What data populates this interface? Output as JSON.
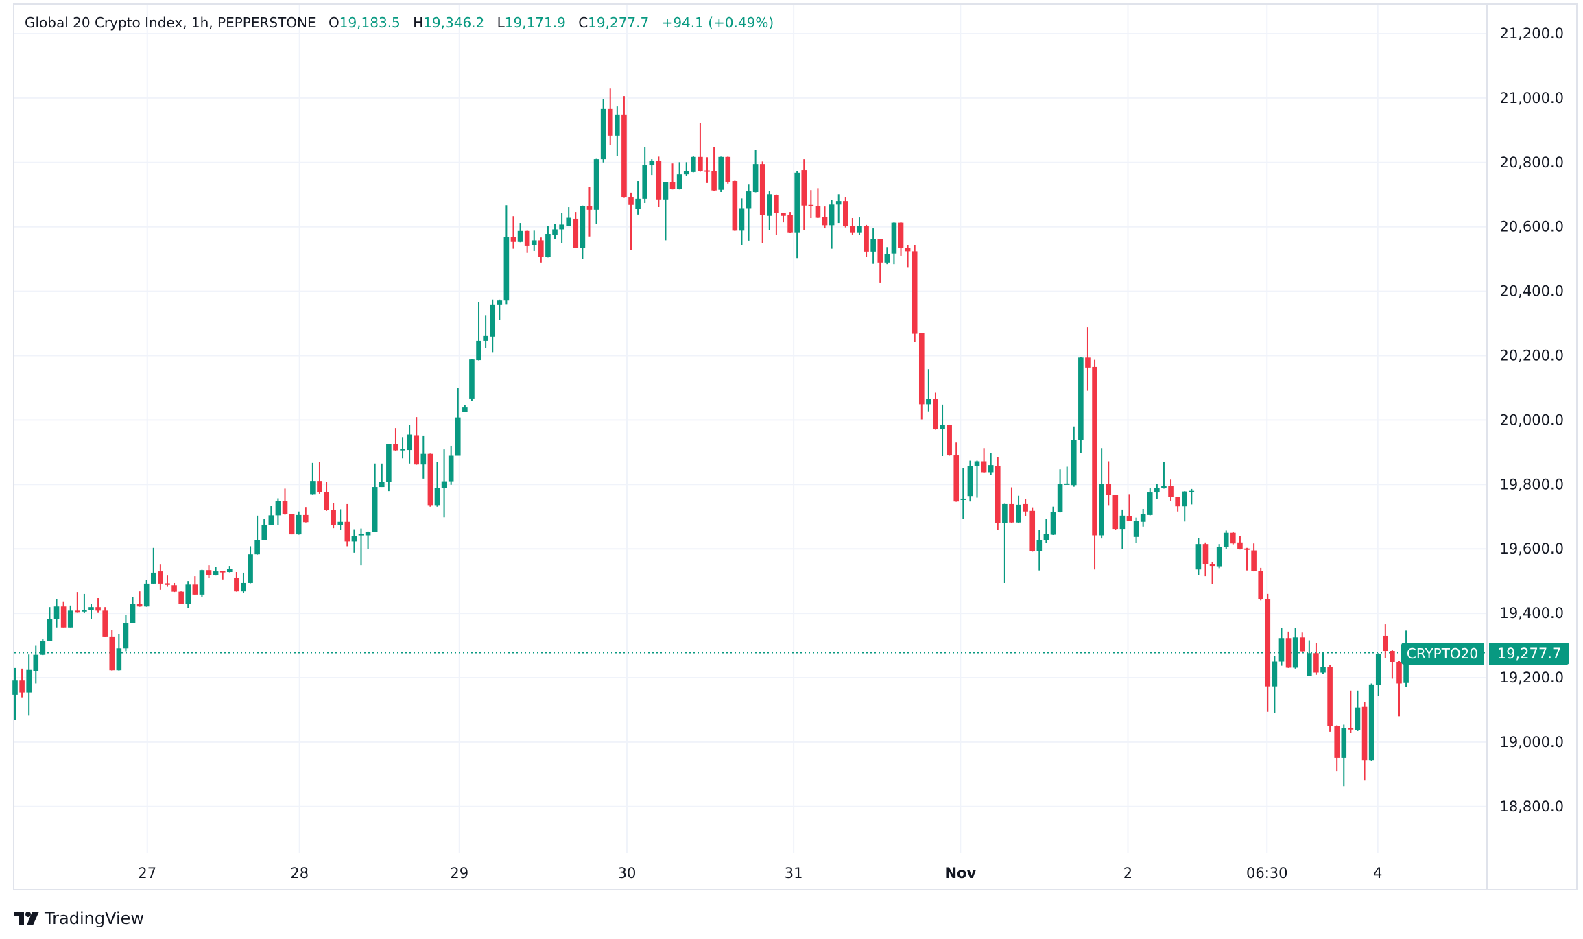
{
  "header": {
    "title": "Global 20 Crypto Index, 1h, PEPPERSTONE",
    "o_label": "O",
    "o_value": "19,183.5",
    "h_label": "H",
    "h_value": "19,346.2",
    "l_label": "L",
    "l_value": "19,171.9",
    "c_label": "C",
    "c_value": "19,277.7",
    "change": "+94.1 (+0.49%)"
  },
  "last_price": {
    "symbol": "CRYPTO20",
    "value": "19,277.7",
    "price": 19277.7
  },
  "branding": {
    "logo_text": "TradingView"
  },
  "colors": {
    "up": "#089981",
    "down": "#f23645",
    "grid": "#f0f3fa",
    "text": "#131722"
  },
  "chart_data": {
    "type": "candlestick",
    "title": "Global 20 Crypto Index, 1h, PEPPERSTONE",
    "ylim": [
      18650,
      21300
    ],
    "y_ticks": [
      {
        "value": 21200,
        "label": "21,200.0"
      },
      {
        "value": 21000,
        "label": "21,000.0"
      },
      {
        "value": 20800,
        "label": "20,800.0"
      },
      {
        "value": 20600,
        "label": "20,600.0"
      },
      {
        "value": 20400,
        "label": "20,400.0"
      },
      {
        "value": 20200,
        "label": "20,200.0"
      },
      {
        "value": 20000,
        "label": "20,000.0"
      },
      {
        "value": 19800,
        "label": "19,800.0"
      },
      {
        "value": 19600,
        "label": "19,600.0"
      },
      {
        "value": 19400,
        "label": "19,400.0"
      },
      {
        "value": 19200,
        "label": "19,200.0"
      },
      {
        "value": 19000,
        "label": "19,000.0"
      },
      {
        "value": 18800,
        "label": "18,800.0"
      }
    ],
    "x_ticks": [
      {
        "index": 19.1,
        "label": "27",
        "bold": false
      },
      {
        "index": 41.1,
        "label": "28",
        "bold": false
      },
      {
        "index": 64.2,
        "label": "29",
        "bold": false
      },
      {
        "index": 88.4,
        "label": "30",
        "bold": false
      },
      {
        "index": 112.5,
        "label": "31",
        "bold": false
      },
      {
        "index": 136.6,
        "label": "Nov",
        "bold": true
      },
      {
        "index": 160.8,
        "label": "2",
        "bold": false
      },
      {
        "index": 180.9,
        "label": "06:30",
        "bold": false
      },
      {
        "index": 196.9,
        "label": "4",
        "bold": false
      }
    ],
    "candles_format": [
      "open",
      "high",
      "low",
      "close"
    ],
    "candles": [
      [
        19147,
        19230,
        19068,
        19191
      ],
      [
        19191,
        19228,
        19139,
        19154
      ],
      [
        19154,
        19272,
        19082,
        19224
      ],
      [
        19220,
        19299,
        19182,
        19271
      ],
      [
        19271,
        19320,
        19270,
        19314
      ],
      [
        19314,
        19419,
        19313,
        19383
      ],
      [
        19383,
        19443,
        19356,
        19421
      ],
      [
        19421,
        19437,
        19356,
        19356
      ],
      [
        19356,
        19424,
        19358,
        19408
      ],
      [
        19408,
        19466,
        19403,
        19405
      ],
      [
        19405,
        19460,
        19402,
        19410
      ],
      [
        19410,
        19430,
        19382,
        19419
      ],
      [
        19419,
        19447,
        19403,
        19408
      ],
      [
        19408,
        19419,
        19327,
        19328
      ],
      [
        19328,
        19347,
        19222,
        19223
      ],
      [
        19223,
        19336,
        19222,
        19291
      ],
      [
        19291,
        19395,
        19282,
        19370
      ],
      [
        19370,
        19451,
        19369,
        19429
      ],
      [
        19429,
        19468,
        19420,
        19421
      ],
      [
        19421,
        19503,
        19420,
        19492
      ],
      [
        19492,
        19603,
        19490,
        19526
      ],
      [
        19530,
        19551,
        19473,
        19492
      ],
      [
        19493,
        19517,
        19482,
        19488
      ],
      [
        19487,
        19494,
        19466,
        19467
      ],
      [
        19467,
        19468,
        19430,
        19430
      ],
      [
        19430,
        19500,
        19416,
        19489
      ],
      [
        19489,
        19515,
        19457,
        19458
      ],
      [
        19458,
        19535,
        19451,
        19534
      ],
      [
        19534,
        19549,
        19510,
        19518
      ],
      [
        19518,
        19545,
        19517,
        19530
      ],
      [
        19531,
        19532,
        19505,
        19530
      ],
      [
        19528,
        19547,
        19527,
        19537
      ],
      [
        19510,
        19528,
        19467,
        19468
      ],
      [
        19468,
        19526,
        19464,
        19494
      ],
      [
        19494,
        19608,
        19493,
        19583
      ],
      [
        19583,
        19703,
        19582,
        19628
      ],
      [
        19628,
        19693,
        19627,
        19675
      ],
      [
        19675,
        19733,
        19674,
        19704
      ],
      [
        19704,
        19757,
        19675,
        19748
      ],
      [
        19748,
        19787,
        19706,
        19707
      ],
      [
        19707,
        19708,
        19645,
        19645
      ],
      [
        19645,
        19716,
        19644,
        19705
      ],
      [
        19705,
        19730,
        19682,
        19683
      ],
      [
        19770,
        19867,
        19769,
        19811
      ],
      [
        19811,
        19869,
        19771,
        19777
      ],
      [
        19777,
        19809,
        19718,
        19721
      ],
      [
        19721,
        19741,
        19664,
        19675
      ],
      [
        19675,
        19723,
        19660,
        19684
      ],
      [
        19684,
        19739,
        19608,
        19623
      ],
      [
        19623,
        19661,
        19588,
        19639
      ],
      [
        19645,
        19663,
        19549,
        19646
      ],
      [
        19642,
        19654,
        19600,
        19653
      ],
      [
        19653,
        19865,
        19652,
        19792
      ],
      [
        19792,
        19865,
        19792,
        19808
      ],
      [
        19808,
        19926,
        19779,
        19925
      ],
      [
        19925,
        19975,
        19905,
        19906
      ],
      [
        19907,
        19947,
        19881,
        19910
      ],
      [
        19907,
        19984,
        19865,
        19955
      ],
      [
        19953,
        20009,
        19861,
        19862
      ],
      [
        19862,
        19952,
        19818,
        19895
      ],
      [
        19895,
        19896,
        19731,
        19736
      ],
      [
        19736,
        19870,
        19731,
        19788
      ],
      [
        19788,
        19909,
        19698,
        19810
      ],
      [
        19810,
        19920,
        19799,
        19889
      ],
      [
        19889,
        20099,
        19892,
        20008
      ],
      [
        20026,
        20047,
        20025,
        20039
      ],
      [
        20067,
        20189,
        20059,
        20188
      ],
      [
        20186,
        20365,
        20185,
        20246
      ],
      [
        20246,
        20326,
        20223,
        20261
      ],
      [
        20259,
        20374,
        20211,
        20359
      ],
      [
        20359,
        20374,
        20310,
        20371
      ],
      [
        20371,
        20667,
        20360,
        20569
      ],
      [
        20569,
        20633,
        20532,
        20553
      ],
      [
        20553,
        20612,
        20552,
        20587
      ],
      [
        20587,
        20588,
        20519,
        20542
      ],
      [
        20544,
        20588,
        20525,
        20558
      ],
      [
        20558,
        20567,
        20489,
        20506
      ],
      [
        20506,
        20603,
        20505,
        20578
      ],
      [
        20576,
        20610,
        20563,
        20592
      ],
      [
        20592,
        20644,
        20550,
        20607
      ],
      [
        20603,
        20661,
        20602,
        20628
      ],
      [
        20625,
        20646,
        20534,
        20535
      ],
      [
        20535,
        20666,
        20500,
        20665
      ],
      [
        20665,
        20723,
        20570,
        20653
      ],
      [
        20653,
        20811,
        20610,
        20810
      ],
      [
        20810,
        20997,
        20800,
        20966
      ],
      [
        20966,
        21029,
        20853,
        20883
      ],
      [
        20883,
        20974,
        20819,
        20949
      ],
      [
        20949,
        21006,
        20692,
        20693
      ],
      [
        20693,
        20706,
        20527,
        20668
      ],
      [
        20656,
        20742,
        20638,
        20687
      ],
      [
        20687,
        20848,
        20674,
        20791
      ],
      [
        20791,
        20810,
        20761,
        20806
      ],
      [
        20806,
        20818,
        20661,
        20685
      ],
      [
        20685,
        20739,
        20558,
        20738
      ],
      [
        20738,
        20797,
        20716,
        20717
      ],
      [
        20717,
        20801,
        20716,
        20763
      ],
      [
        20763,
        20801,
        20757,
        20772
      ],
      [
        20770,
        20819,
        20769,
        20817
      ],
      [
        20817,
        20923,
        20771,
        20772
      ],
      [
        20775,
        20816,
        20736,
        20772
      ],
      [
        20772,
        20848,
        20712,
        20713
      ],
      [
        20715,
        20818,
        20708,
        20817
      ],
      [
        20817,
        20818,
        20734,
        20740
      ],
      [
        20742,
        20743,
        20587,
        20588
      ],
      [
        20588,
        20688,
        20544,
        20658
      ],
      [
        20658,
        20733,
        20557,
        20710
      ],
      [
        20708,
        20840,
        20707,
        20795
      ],
      [
        20795,
        20803,
        20550,
        20636
      ],
      [
        20634,
        20712,
        20590,
        20701
      ],
      [
        20699,
        20700,
        20574,
        20642
      ],
      [
        20642,
        20644,
        20614,
        20634
      ],
      [
        20636,
        20646,
        20582,
        20583
      ],
      [
        20583,
        20774,
        20503,
        20768
      ],
      [
        20776,
        20810,
        20590,
        20666
      ],
      [
        20668,
        20714,
        20627,
        20667
      ],
      [
        20665,
        20720,
        20627,
        20628
      ],
      [
        20630,
        20663,
        20595,
        20605
      ],
      [
        20605,
        20684,
        20532,
        20669
      ],
      [
        20669,
        20701,
        20612,
        20680
      ],
      [
        20680,
        20693,
        20598,
        20603
      ],
      [
        20603,
        20627,
        20576,
        20583
      ],
      [
        20583,
        20629,
        20574,
        20603
      ],
      [
        20603,
        20606,
        20507,
        20523
      ],
      [
        20523,
        20595,
        20485,
        20562
      ],
      [
        20562,
        20563,
        20427,
        20489
      ],
      [
        20489,
        20537,
        20484,
        20516
      ],
      [
        20517,
        20614,
        20484,
        20613
      ],
      [
        20613,
        20614,
        20510,
        20534
      ],
      [
        20535,
        20544,
        20475,
        20524
      ],
      [
        20524,
        20544,
        20242,
        20268
      ],
      [
        20270,
        20271,
        20002,
        20049
      ],
      [
        20049,
        20158,
        20027,
        20065
      ],
      [
        20065,
        20085,
        19970,
        19971
      ],
      [
        19971,
        20048,
        19888,
        19985
      ],
      [
        19985,
        19986,
        19889,
        19890
      ],
      [
        19890,
        19930,
        19746,
        19747
      ],
      [
        19755,
        19851,
        19693,
        19756
      ],
      [
        19764,
        19874,
        19747,
        19857
      ],
      [
        19857,
        19874,
        19759,
        19872
      ],
      [
        19872,
        19913,
        19837,
        19838
      ],
      [
        19838,
        19898,
        19830,
        19860
      ],
      [
        19857,
        19885,
        19658,
        19680
      ],
      [
        19680,
        19740,
        19494,
        19739
      ],
      [
        19739,
        19791,
        19681,
        19682
      ],
      [
        19682,
        19765,
        19681,
        19737
      ],
      [
        19739,
        19755,
        19701,
        19716
      ],
      [
        19718,
        19729,
        19591,
        19592
      ],
      [
        19592,
        19658,
        19533,
        19628
      ],
      [
        19628,
        19694,
        19619,
        19646
      ],
      [
        19644,
        19731,
        19643,
        19715
      ],
      [
        19714,
        19847,
        19713,
        19802
      ],
      [
        19802,
        19855,
        19801,
        19803
      ],
      [
        19798,
        19980,
        19793,
        19937
      ],
      [
        19937,
        20195,
        19898,
        20194
      ],
      [
        20194,
        20288,
        20091,
        20163
      ],
      [
        20165,
        20187,
        19536,
        19642
      ],
      [
        19642,
        19913,
        19632,
        19802
      ],
      [
        19802,
        19872,
        19736,
        19767
      ],
      [
        19767,
        19768,
        19658,
        19662
      ],
      [
        19662,
        19722,
        19600,
        19703
      ],
      [
        19701,
        19770,
        19686,
        19687
      ],
      [
        19637,
        19697,
        19619,
        19686
      ],
      [
        19684,
        19724,
        19669,
        19707
      ],
      [
        19705,
        19790,
        19704,
        19775
      ],
      [
        19775,
        19801,
        19755,
        19788
      ],
      [
        19788,
        19870,
        19787,
        19795
      ],
      [
        19795,
        19815,
        19749,
        19761
      ],
      [
        19761,
        19762,
        19716,
        19732
      ],
      [
        19732,
        19779,
        19685,
        19778
      ],
      [
        19779,
        19786,
        19738,
        19780
      ],
      [
        19536,
        19633,
        19518,
        19615
      ],
      [
        19615,
        19620,
        19515,
        19552
      ],
      [
        19552,
        19560,
        19490,
        19547
      ],
      [
        19546,
        19615,
        19540,
        19605
      ],
      [
        19605,
        19657,
        19600,
        19650
      ],
      [
        19650,
        19652,
        19614,
        19617
      ],
      [
        19620,
        19640,
        19598,
        19600
      ],
      [
        19601,
        19603,
        19533,
        19597
      ],
      [
        19595,
        19617,
        19530,
        19531
      ],
      [
        19531,
        19541,
        19440,
        19443
      ],
      [
        19443,
        19460,
        19094,
        19173
      ],
      [
        19173,
        19267,
        19090,
        19250
      ],
      [
        19250,
        19355,
        19237,
        19323
      ],
      [
        19323,
        19343,
        19230,
        19231
      ],
      [
        19231,
        19355,
        19228,
        19325
      ],
      [
        19325,
        19340,
        19280,
        19282
      ],
      [
        19206,
        19316,
        19205,
        19276
      ],
      [
        19276,
        19308,
        19209,
        19216
      ],
      [
        19216,
        19279,
        19212,
        19234
      ],
      [
        19234,
        19240,
        19032,
        19049
      ],
      [
        19049,
        19052,
        18910,
        18951
      ],
      [
        18951,
        19054,
        18863,
        19043
      ],
      [
        19043,
        19160,
        19028,
        19041
      ],
      [
        19036,
        19160,
        19034,
        19107
      ],
      [
        19109,
        19125,
        18882,
        18944
      ],
      [
        18944,
        19182,
        18942,
        19179
      ],
      [
        19178,
        19276,
        19143,
        19274
      ],
      [
        19330,
        19366,
        19261,
        19283
      ],
      [
        19283,
        19285,
        19197,
        19249
      ],
      [
        19249,
        19252,
        19080,
        19182
      ],
      [
        19183.5,
        19346.2,
        19171.9,
        19277.7
      ]
    ]
  }
}
